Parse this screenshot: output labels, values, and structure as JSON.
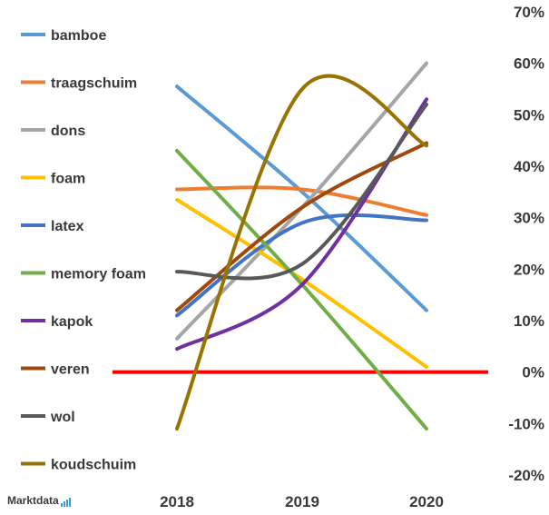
{
  "chart_data": {
    "type": "line",
    "title": "",
    "xlabel": "",
    "ylabel": "",
    "x": [
      "2018",
      "2019",
      "2020"
    ],
    "yticks": [
      "70%",
      "60%",
      "50%",
      "40%",
      "30%",
      "20%",
      "10%",
      "0%",
      "-10%",
      "-20%"
    ],
    "ylim": [
      -20,
      70
    ],
    "y_unit": "%",
    "grid": false,
    "legend_position": "left",
    "zero_line_color": "#ff0000",
    "series": [
      {
        "name": "bamboe",
        "color": "#5b9bd5",
        "values": [
          55.5,
          35,
          12
        ]
      },
      {
        "name": "traagschuim",
        "color": "#ed7d31",
        "values": [
          35.5,
          35.5,
          30.5
        ]
      },
      {
        "name": "dons",
        "color": "#a5a5a5",
        "values": [
          6.5,
          32,
          60
        ]
      },
      {
        "name": "foam",
        "color": "#ffc000",
        "values": [
          33.5,
          18,
          1
        ]
      },
      {
        "name": "latex",
        "color": "#4472c4",
        "values": [
          11,
          29,
          29.5
        ]
      },
      {
        "name": "memory foam",
        "color": "#70ad47",
        "values": [
          43,
          17,
          -11
        ]
      },
      {
        "name": "kapok",
        "color": "#7030a0",
        "values": [
          4.5,
          17,
          53
        ]
      },
      {
        "name": "veren",
        "color": "#9e480e",
        "values": [
          12,
          32,
          44.5
        ]
      },
      {
        "name": "wol",
        "color": "#595959",
        "values": [
          19.5,
          21,
          52
        ]
      },
      {
        "name": "koudschuim",
        "color": "#997300",
        "values": [
          -11,
          55,
          44
        ]
      }
    ]
  },
  "brand": {
    "name": "Marktdata",
    "bar_color": "#3aa0d8"
  }
}
